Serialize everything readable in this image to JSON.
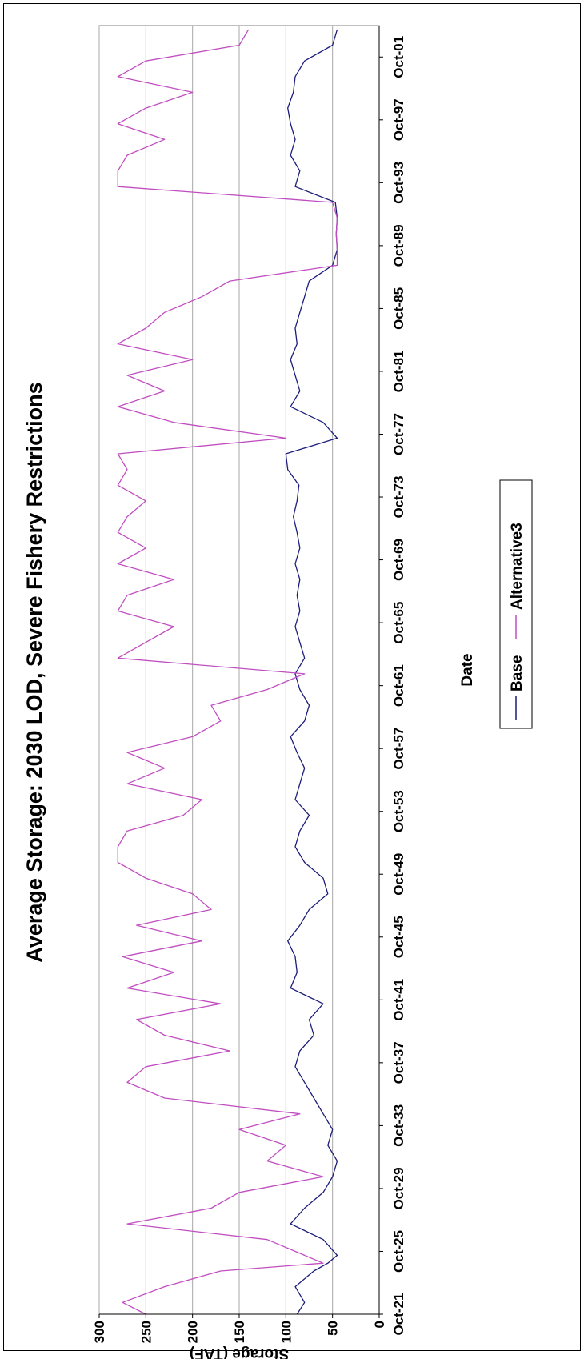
{
  "chart_data": {
    "type": "line",
    "title": "Average Storage: 2030 LOD, Severe Fishery Restrictions",
    "xlabel": "Date",
    "ylabel": "Storage (TAF)",
    "ylim": [
      0,
      300
    ],
    "y_ticks": [
      0,
      50,
      100,
      150,
      200,
      250,
      300
    ],
    "x_ticks": [
      "Oct-21",
      "Oct-25",
      "Oct-29",
      "Oct-33",
      "Oct-37",
      "Oct-41",
      "Oct-45",
      "Oct-49",
      "Oct-53",
      "Oct-57",
      "Oct-61",
      "Oct-65",
      "Oct-69",
      "Oct-73",
      "Oct-77",
      "Oct-81",
      "Oct-85",
      "Oct-89",
      "Oct-93",
      "Oct-97",
      "Oct-01"
    ],
    "xlim": [
      "Oct-1921",
      "Sep-2003"
    ],
    "grid": "horizontal major gridlines",
    "legend_position": "bottom",
    "orientation": "rotated 90 degrees clockwise",
    "colors": {
      "Base": "#1c1c7a",
      "Alternative3": "#c04ec0",
      "grid": "#a8a8a8"
    },
    "x_years": [
      1921.75,
      1922.5,
      1923.5,
      1924.5,
      1925.0,
      1925.5,
      1926.5,
      1927.5,
      1928.5,
      1929.5,
      1930.5,
      1931.5,
      1932.5,
      1933.5,
      1934.5,
      1935.5,
      1936.5,
      1937.5,
      1938.5,
      1939.5,
      1940.5,
      1941.5,
      1942.5,
      1943.5,
      1944.5,
      1945.5,
      1946.5,
      1947.5,
      1948.5,
      1949.5,
      1950.5,
      1951.5,
      1952.5,
      1953.5,
      1954.5,
      1955.5,
      1956.5,
      1957.5,
      1958.5,
      1959.5,
      1960.5,
      1961.5,
      1962.5,
      1963.5,
      1964.5,
      1965.5,
      1966.5,
      1967.5,
      1968.5,
      1969.5,
      1970.5,
      1971.5,
      1972.5,
      1973.5,
      1974.5,
      1975.5,
      1976.5,
      1977.5,
      1978.5,
      1979.5,
      1980.5,
      1981.5,
      1982.5,
      1983.5,
      1984.5,
      1985.5,
      1986.5,
      1987.5,
      1988.5,
      1989.5,
      1990.5,
      1991.5,
      1992.5,
      1993.5,
      1994.5,
      1995.5,
      1996.5,
      1997.5,
      1998.5,
      1999.5,
      2000.5,
      2001.5,
      2002.5,
      2003.5
    ],
    "series": [
      {
        "name": "Base",
        "values": [
          88,
          80,
          90,
          70,
          55,
          45,
          60,
          95,
          80,
          60,
          50,
          45,
          55,
          50,
          60,
          70,
          80,
          90,
          85,
          70,
          75,
          60,
          95,
          88,
          90,
          98,
          85,
          75,
          55,
          60,
          80,
          90,
          85,
          75,
          90,
          85,
          80,
          88,
          95,
          80,
          75,
          85,
          90,
          80,
          85,
          90,
          85,
          88,
          85,
          90,
          85,
          88,
          92,
          88,
          86,
          98,
          100,
          45,
          60,
          95,
          85,
          90,
          95,
          88,
          90,
          85,
          80,
          75,
          50,
          45,
          46,
          45,
          47,
          90,
          85,
          95,
          90,
          95,
          98,
          92,
          90,
          80,
          50,
          45
        ]
      },
      {
        "name": "Alternative3",
        "values": [
          250,
          275,
          230,
          170,
          60,
          80,
          120,
          270,
          180,
          150,
          60,
          120,
          100,
          150,
          85,
          230,
          270,
          250,
          160,
          230,
          260,
          170,
          270,
          220,
          275,
          190,
          260,
          180,
          200,
          250,
          280,
          280,
          270,
          210,
          190,
          270,
          230,
          270,
          200,
          170,
          180,
          120,
          80,
          280,
          250,
          220,
          280,
          270,
          220,
          280,
          250,
          280,
          270,
          250,
          280,
          270,
          280,
          100,
          220,
          280,
          230,
          270,
          200,
          280,
          250,
          230,
          190,
          160,
          45,
          45,
          46,
          45,
          50,
          280,
          280,
          270,
          230,
          280,
          250,
          200,
          280,
          250,
          150,
          140
        ]
      }
    ]
  }
}
